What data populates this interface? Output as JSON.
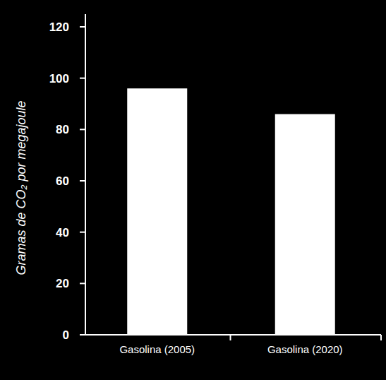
{
  "chart_data": {
    "type": "bar",
    "y_label": "Gramas de CO₂ por megajoule",
    "categories": [
      "Gasolina (2005)",
      "Gasolina (2020)"
    ],
    "values": [
      96,
      86
    ],
    "color": "#ffffff",
    "ylim": [
      0,
      120
    ],
    "yticks": [
      0,
      20,
      40,
      60,
      80,
      100,
      120
    ],
    "grid": false
  }
}
